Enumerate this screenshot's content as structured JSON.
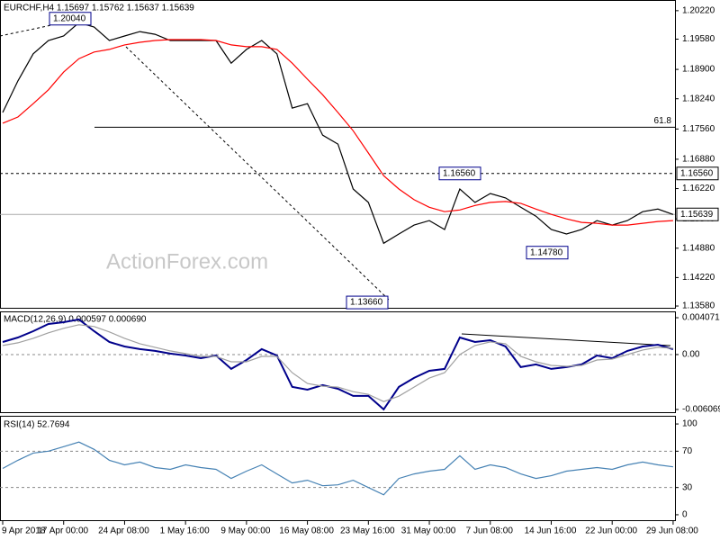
{
  "chart_data": [
    {
      "type": "line",
      "title": "EURCHF,H4 1.15697 1.15762 1.15637 1.15639",
      "categories": [
        "9 Apr 2018",
        null,
        null,
        null,
        "17 Apr 00:00",
        null,
        null,
        null,
        "24 Apr 08:00",
        null,
        null,
        null,
        "1 May 16:00",
        null,
        null,
        null,
        "9 May 00:00",
        null,
        null,
        null,
        "16 May 08:00",
        null,
        null,
        null,
        "23 May 16:00",
        null,
        null,
        null,
        "31 May 00:00",
        null,
        null,
        null,
        "7 Jun 08:00",
        null,
        null,
        null,
        "14 Jun 16:00",
        null,
        null,
        null,
        "22 Jun 00:00",
        null,
        null,
        null,
        "29 Jun 08:00"
      ],
      "series": [
        {
          "color": "#000000",
          "values": [
            1.1793,
            1.1864,
            1.1925,
            1.1955,
            1.1965,
            1.1995,
            1.1985,
            1.1955,
            1.1965,
            1.1975,
            1.1969,
            1.1955,
            1.1955,
            1.1955,
            1.1955,
            1.1904,
            1.1935,
            1.1955,
            1.1925,
            1.1803,
            1.1813,
            1.1742,
            1.1722,
            1.1621,
            1.1591,
            1.1499,
            1.152,
            1.154,
            1.155,
            1.153,
            1.1621,
            1.1591,
            1.1611,
            1.1601,
            1.158,
            1.156,
            1.153,
            1.152,
            1.153,
            1.155,
            1.154,
            1.155,
            1.157,
            1.1576,
            1.15639
          ]
        },
        {
          "color": "#ff0000",
          "values": [
            1.1769,
            1.1783,
            1.1813,
            1.1844,
            1.1884,
            1.1914,
            1.1929,
            1.1935,
            1.1945,
            1.1951,
            1.1955,
            1.1957,
            1.1957,
            1.1957,
            1.1955,
            1.1945,
            1.1941,
            1.1941,
            1.1935,
            1.1904,
            1.1868,
            1.1833,
            1.1793,
            1.1752,
            1.1702,
            1.1651,
            1.1621,
            1.1597,
            1.158,
            1.157,
            1.1574,
            1.1584,
            1.1591,
            1.1593,
            1.1589,
            1.1576,
            1.1564,
            1.1554,
            1.1546,
            1.1544,
            1.154,
            1.154,
            1.1544,
            1.1548,
            1.155
          ]
        }
      ],
      "ylim": [
        1.1354,
        1.2046
      ],
      "yticks": [
        {
          "value": 1.2022,
          "label": "1.20220"
        },
        {
          "value": 1.1958,
          "label": "1.19580"
        },
        {
          "value": 1.189,
          "label": "1.18900"
        },
        {
          "value": 1.1824,
          "label": "1.18240"
        },
        {
          "value": 1.1756,
          "label": "1.17560"
        },
        {
          "value": 1.1688,
          "label": "1.16880"
        },
        {
          "value": 1.1622,
          "label": "1.16220"
        },
        {
          "value": 1.1554,
          "label": "1.15540"
        },
        {
          "value": 1.1488,
          "label": "1.14880"
        },
        {
          "value": 1.1422,
          "label": "1.14220"
        },
        {
          "value": 1.1358,
          "label": "1.13580"
        }
      ],
      "price_boxes": [
        {
          "value": 1.1656,
          "label": "1.16560"
        },
        {
          "value": 1.15639
        }
      ],
      "annotations": [
        {
          "value": 1.2004,
          "label": "1.20040"
        },
        {
          "value": 1.1656,
          "label": "1.16560"
        },
        {
          "value": 1.1366,
          "label": "1.13660"
        },
        {
          "value": 1.1478,
          "label": "1.14780"
        }
      ],
      "fib_level": {
        "value": 1.176,
        "label": "61.8"
      },
      "watermark": "ActionForex.com"
    },
    {
      "type": "line",
      "title": "MACD(12,26,9) 0.000597 0.000690",
      "series": [
        {
          "color": "#00008b",
          "values": [
            0.00139,
            0.00189,
            0.00258,
            0.00338,
            0.00358,
            0.00388,
            0.00258,
            0.00139,
            0.00089,
            0.0006,
            0.0004,
            0.0001,
            -0.0001,
            -0.0004,
            -0.0001,
            -0.00159,
            -0.0006,
            0.0006,
            -0.0001,
            -0.00358,
            -0.00388,
            -0.00338,
            -0.00378,
            -0.00457,
            -0.00457,
            -0.00606,
            -0.00358,
            -0.00258,
            -0.00179,
            -0.00159,
            0.00189,
            0.00139,
            0.00159,
            0.00089,
            -0.00139,
            -0.00109,
            -0.00159,
            -0.00139,
            -0.00109,
            -0.0001,
            -0.0004,
            0.0004,
            0.00089,
            0.00109,
            0.000597
          ]
        },
        {
          "color": "#a0a0a0",
          "values": [
            0.001,
            0.0013,
            0.0018,
            0.0024,
            0.0029,
            0.0033,
            0.0031,
            0.0025,
            0.0018,
            0.0012,
            0.0008,
            0.0004,
            0.0001,
            -0.0002,
            -0.0002,
            -0.0008,
            -0.0008,
            -0.0002,
            -0.0002,
            -0.002,
            -0.0032,
            -0.0035,
            -0.0036,
            -0.0041,
            -0.0044,
            -0.0052,
            -0.0046,
            -0.0036,
            -0.0026,
            -0.002,
            0.0,
            0.001,
            0.0014,
            0.0012,
            -0.0002,
            -0.0008,
            -0.0012,
            -0.0013,
            -0.0012,
            -0.0006,
            -0.0005,
            0.0,
            0.0005,
            0.0008,
            0.00069
          ]
        }
      ],
      "ylim": [
        -0.00637,
        0.00467
      ],
      "yticks": [
        0.004071,
        {
          "value": 0,
          "label": "0.00"
        },
        -0.006069
      ],
      "levels": [
        0
      ]
    },
    {
      "type": "line",
      "title": "RSI(14) 52.7694",
      "series": [
        {
          "color": "#4682b4",
          "values": [
            51,
            60,
            68,
            70,
            75,
            80,
            72,
            60,
            55,
            58,
            52,
            50,
            55,
            52,
            50,
            40,
            48,
            55,
            45,
            35,
            38,
            32,
            33,
            38,
            30,
            22,
            40,
            45,
            48,
            50,
            65,
            50,
            55,
            52,
            45,
            40,
            43,
            48,
            50,
            52,
            50,
            55,
            58,
            55,
            52.7694
          ]
        }
      ],
      "ylim": [
        -6,
        108
      ],
      "yticks": [
        0,
        30,
        70,
        100
      ],
      "levels": [
        30,
        70
      ]
    }
  ]
}
